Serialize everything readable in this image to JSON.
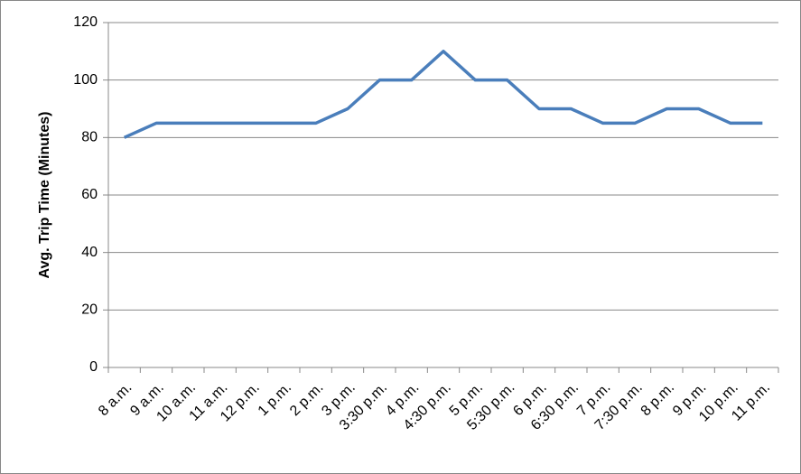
{
  "chart_data": {
    "type": "line",
    "y_axis_label": "Avg. Trip Time (Minutes)",
    "categories": [
      "8 a.m.",
      "9 a.m.",
      "10 a.m.",
      "11 a.m.",
      "12 p.m.",
      "1 p.m.",
      "2 p.m.",
      "3 p.m.",
      "3:30 p.m.",
      "4 p.m.",
      "4:30 p.m.",
      "5 p.m.",
      "5:30 p.m.",
      "6 p.m.",
      "6:30 p.m.",
      "7 p.m.",
      "7:30 p.m.",
      "8 p.m.",
      "9 p.m.",
      "10 p.m.",
      "11 p.m."
    ],
    "values": [
      80,
      85,
      85,
      85,
      85,
      85,
      85,
      90,
      100,
      100,
      110,
      100,
      100,
      90,
      90,
      85,
      85,
      90,
      90,
      85,
      85
    ],
    "color": "#4a7ebb",
    "ylim": [
      0,
      120
    ],
    "yticks": [
      0,
      20,
      40,
      60,
      80,
      100,
      120
    ],
    "grid": true
  }
}
